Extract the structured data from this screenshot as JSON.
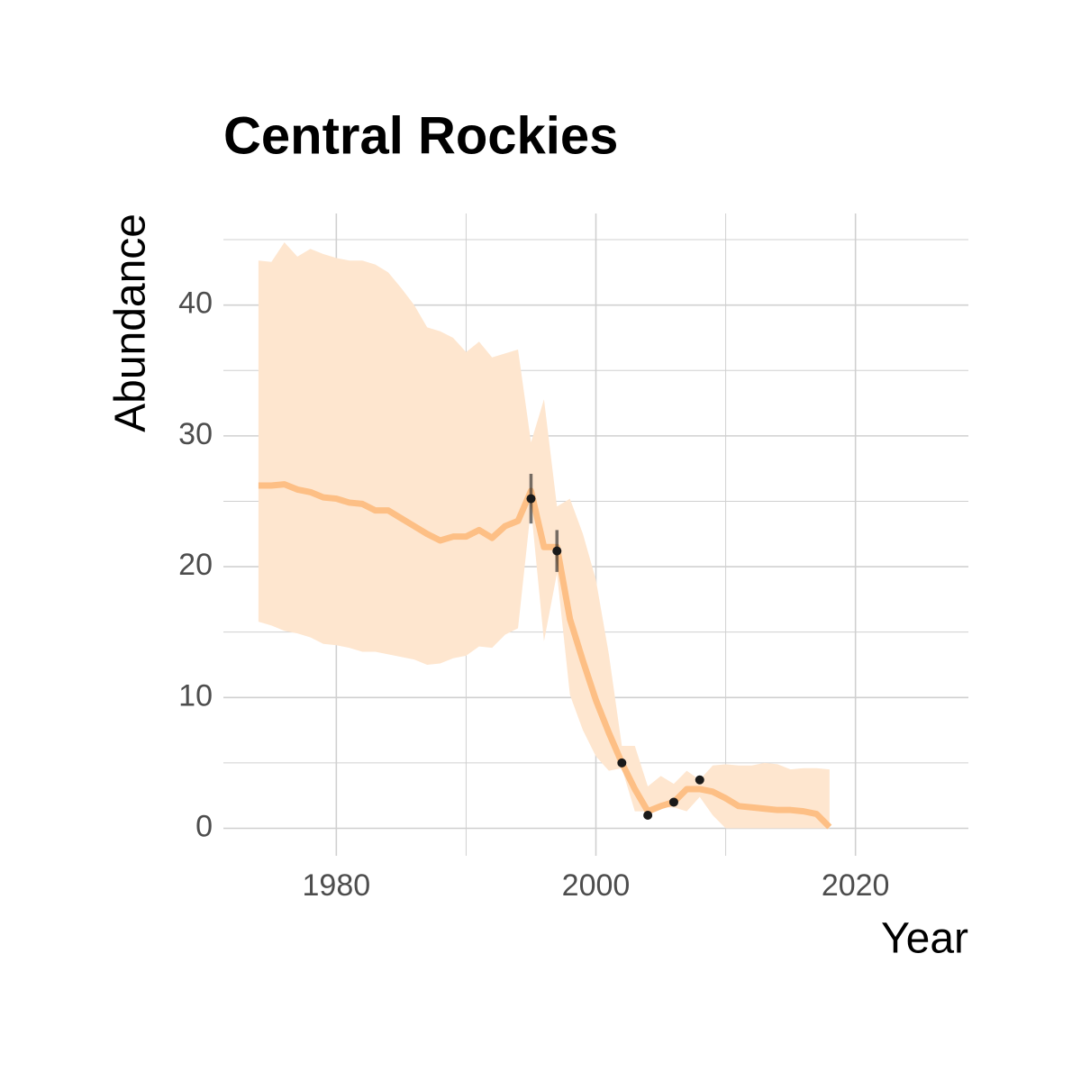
{
  "chart_data": {
    "type": "line",
    "title": "Central Rockies",
    "xlabel": "Year",
    "ylabel": "Abundance",
    "x": [
      1974,
      1975,
      1976,
      1977,
      1978,
      1979,
      1980,
      1981,
      1982,
      1983,
      1984,
      1985,
      1986,
      1987,
      1988,
      1989,
      1990,
      1991,
      1992,
      1993,
      1994,
      1995,
      1996,
      1997,
      1998,
      1999,
      2000,
      2001,
      2002,
      2003,
      2004,
      2005,
      2006,
      2007,
      2008,
      2009,
      2010,
      2011,
      2012,
      2013,
      2014,
      2015,
      2016,
      2017,
      2018
    ],
    "values": [
      26.2,
      26.2,
      26.3,
      25.9,
      25.7,
      25.3,
      25.2,
      24.9,
      24.8,
      24.3,
      24.3,
      23.7,
      23.1,
      22.5,
      22.0,
      22.3,
      22.3,
      22.8,
      22.2,
      23.1,
      23.5,
      25.8,
      21.5,
      21.5,
      16.0,
      12.8,
      9.8,
      7.3,
      5.0,
      3.0,
      1.3,
      1.7,
      2.0,
      3.0,
      3.0,
      2.8,
      2.3,
      1.7,
      1.6,
      1.5,
      1.4,
      1.4,
      1.3,
      1.1,
      0.1
    ],
    "upper": [
      43.4,
      43.3,
      44.8,
      43.7,
      44.3,
      43.9,
      43.6,
      43.4,
      43.4,
      43.1,
      42.5,
      41.3,
      40.0,
      38.3,
      38.0,
      37.5,
      36.4,
      37.2,
      36.0,
      36.3,
      36.6,
      29.5,
      32.8,
      24.6,
      25.2,
      22.5,
      19.0,
      13.3,
      6.3,
      6.3,
      3.2,
      4.0,
      3.4,
      4.4,
      3.7,
      4.8,
      4.9,
      4.8,
      4.8,
      5.0,
      4.9,
      4.5,
      4.6,
      4.6,
      4.5
    ],
    "lower": [
      15.8,
      15.5,
      15.1,
      14.9,
      14.6,
      14.1,
      14.0,
      13.8,
      13.5,
      13.5,
      13.3,
      13.1,
      12.9,
      12.5,
      12.6,
      13.0,
      13.2,
      13.9,
      13.8,
      14.8,
      15.3,
      24.5,
      14.3,
      19.5,
      10.2,
      7.5,
      5.5,
      4.4,
      4.6,
      1.3,
      1.3,
      1.6,
      1.6,
      1.3,
      2.4,
      1.0,
      0,
      0,
      0,
      0,
      0,
      0,
      0,
      0,
      0
    ],
    "color": "#fdbf85",
    "band_color": "#fee6cf",
    "points": {
      "x": [
        1995,
        1997,
        2002,
        2004,
        2006,
        2008
      ],
      "values": [
        25.2,
        21.2,
        5.0,
        1.0,
        2.0,
        3.7
      ],
      "errors": [
        1.9,
        1.6,
        null,
        null,
        null,
        null
      ],
      "color": "#1a1a1a"
    },
    "xlim": [
      1971.3,
      2028.7
    ],
    "xticks": [
      1980,
      2000,
      2020
    ],
    "xminor": [
      1990,
      2010
    ],
    "ylim": [
      -2.1,
      47
    ],
    "yticks": [
      0,
      10,
      20,
      30,
      40
    ],
    "yminor": [
      5,
      15,
      25,
      35,
      45
    ],
    "grid": true
  }
}
